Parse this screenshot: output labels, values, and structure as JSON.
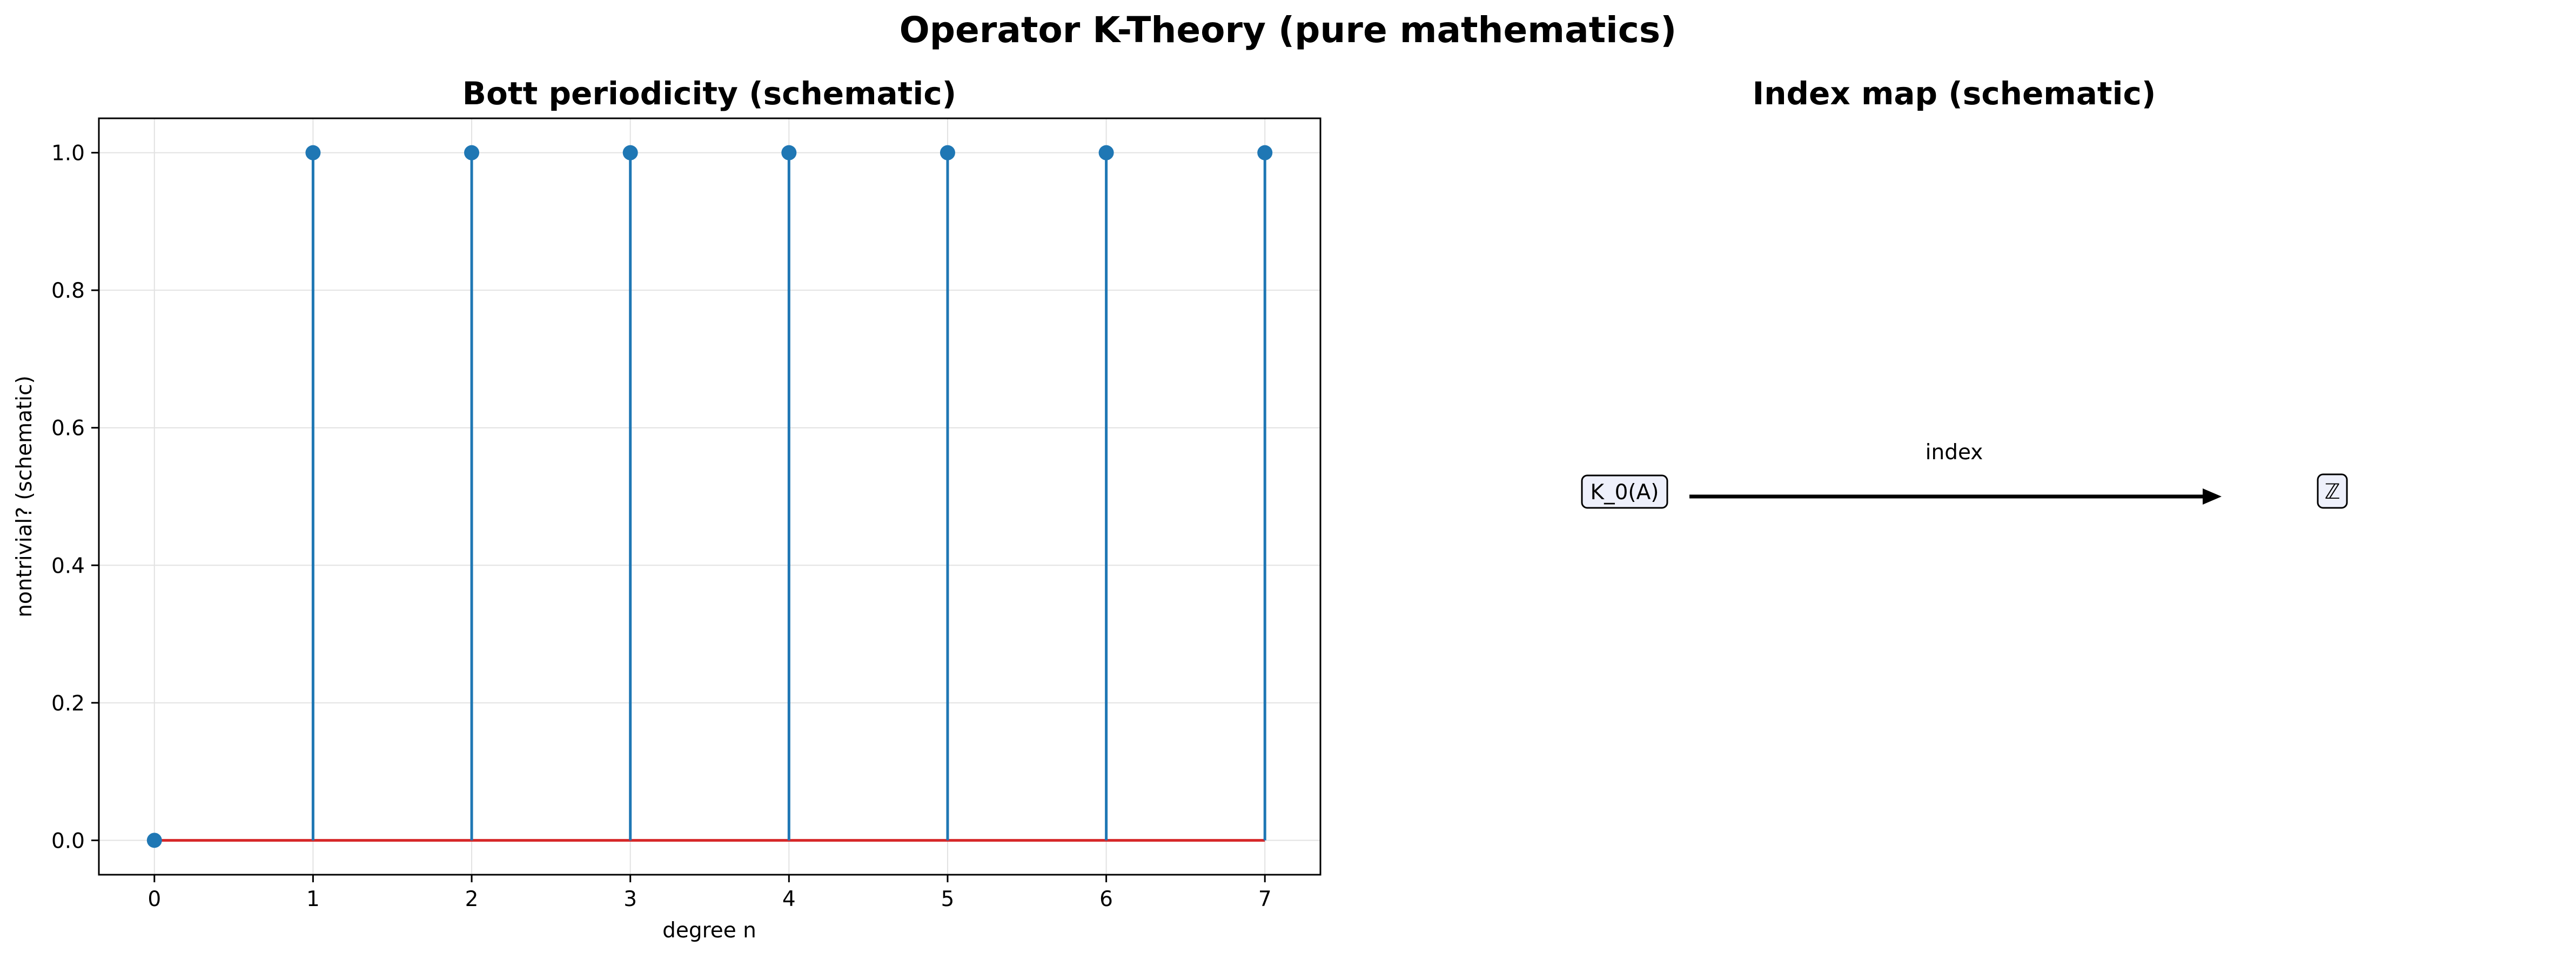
{
  "figure": {
    "suptitle": "Operator K-Theory (pure mathematics)"
  },
  "chart_data": [
    {
      "type": "stem",
      "title": "Bott periodicity (schematic)",
      "xlabel": "degree n",
      "ylabel": "nontrivial? (schematic)",
      "x": [
        0,
        1,
        2,
        3,
        4,
        5,
        6,
        7
      ],
      "y": [
        0,
        1,
        1,
        1,
        1,
        1,
        1,
        1
      ],
      "xlim": [
        -0.35,
        7.35
      ],
      "ylim": [
        -0.05,
        1.05
      ],
      "xticks": [
        0,
        1,
        2,
        3,
        4,
        5,
        6,
        7
      ],
      "yticks": [
        "0.0",
        "0.2",
        "0.4",
        "0.6",
        "0.8",
        "1.0"
      ],
      "ytick_values": [
        0.0,
        0.2,
        0.4,
        0.6,
        0.8,
        1.0
      ],
      "baseline": 0,
      "grid": true,
      "colors": {
        "stem": "#1f77b4",
        "baseline": "#d62728",
        "marker": "#1f77b4"
      }
    },
    {
      "type": "diagram",
      "title": "Index map (schematic)",
      "source_node": "K_0(A)",
      "target_node": "ℤ",
      "arrow_label": "index",
      "grid": false,
      "axes_visible": false
    }
  ]
}
